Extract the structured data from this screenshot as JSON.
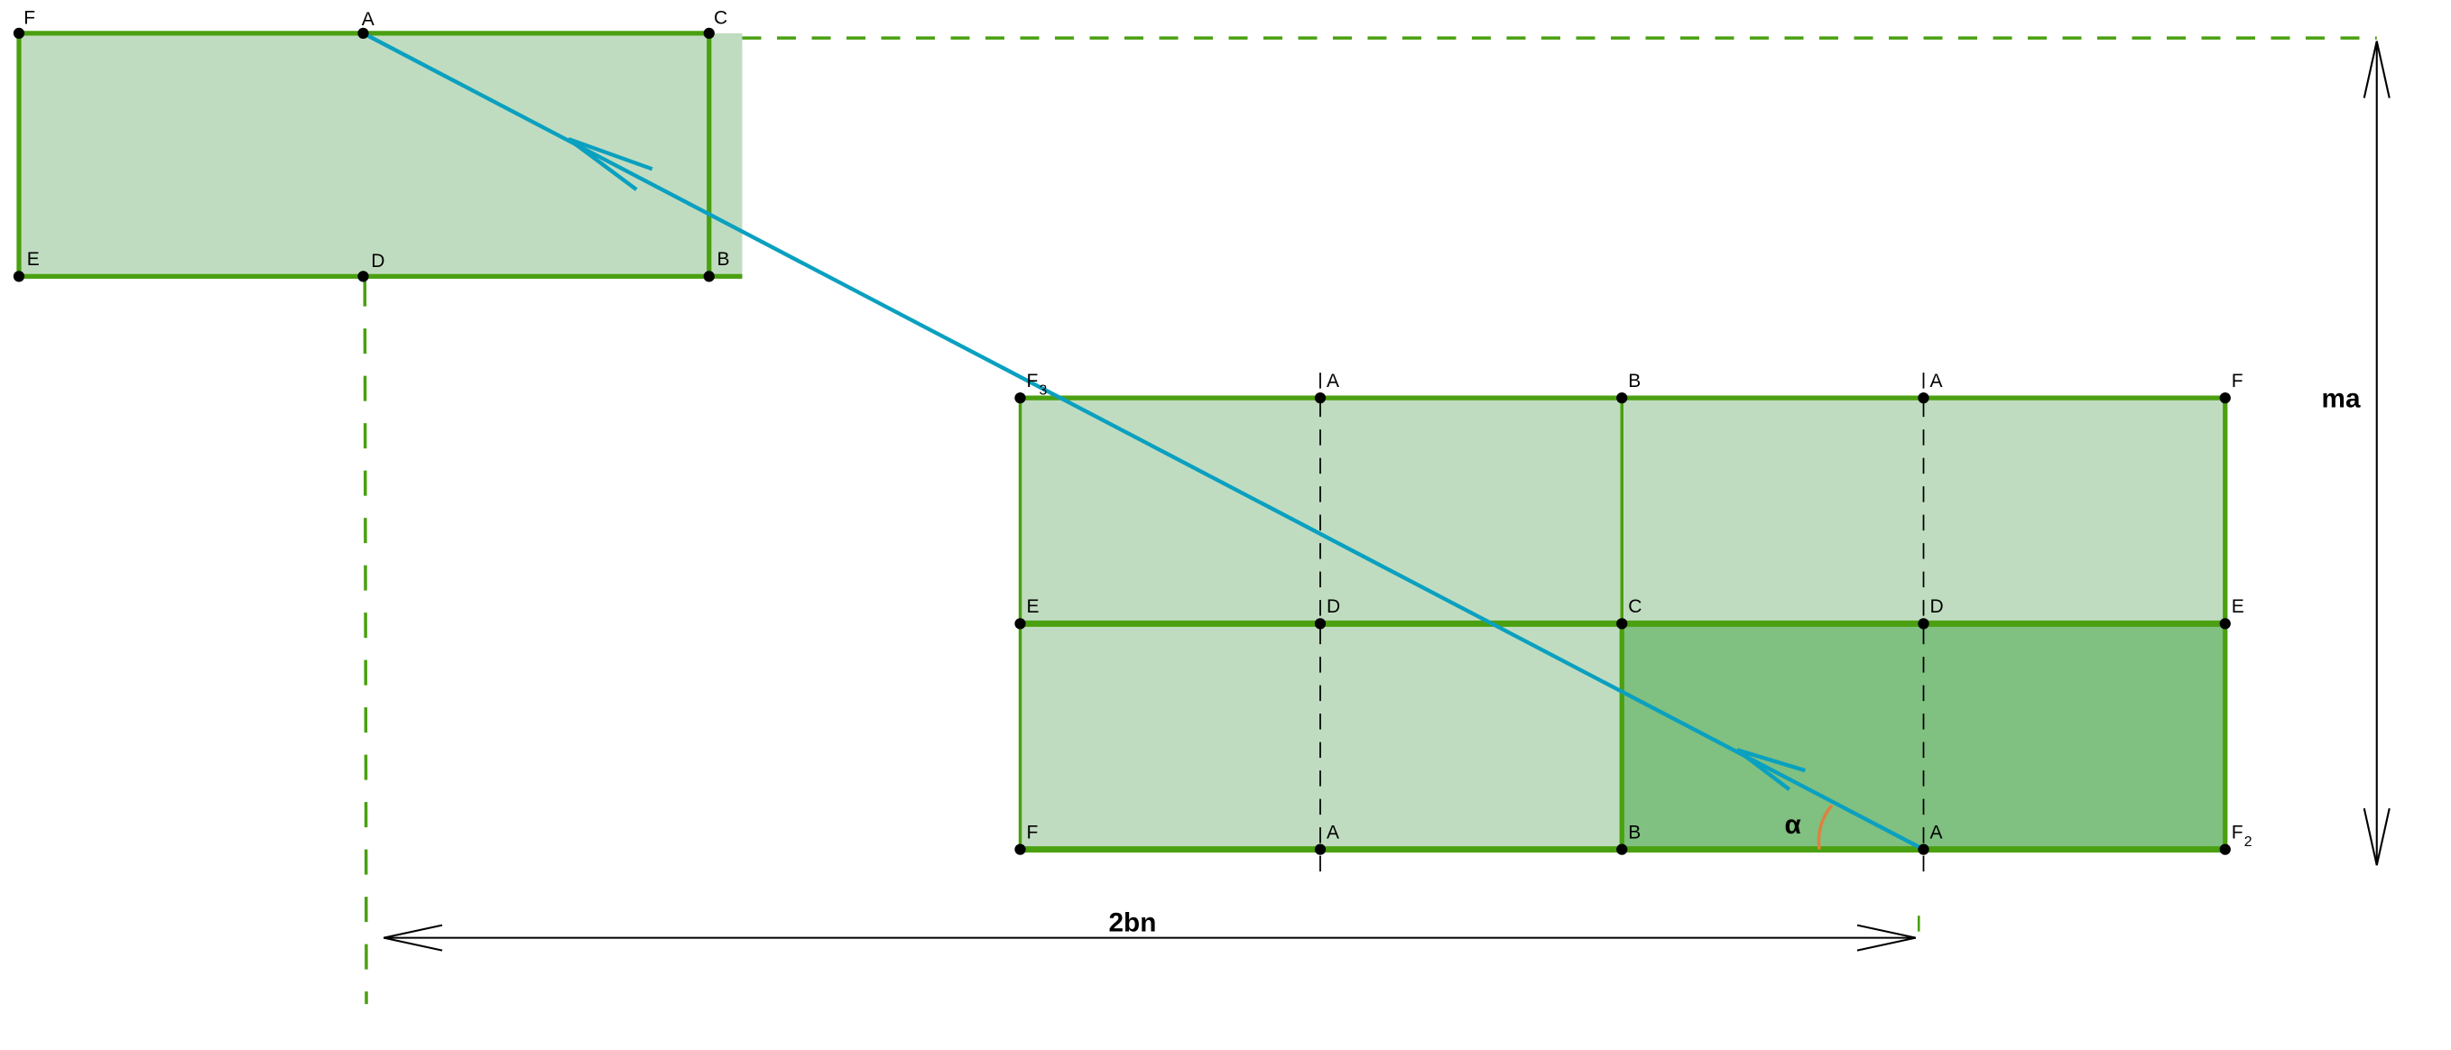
{
  "colors": {
    "light_fill": "#c0dcc0",
    "dark_fill": "#80c080",
    "edge": "#4aa010",
    "ray": "#0aa0c0",
    "arc": "#e08040"
  },
  "top_rect": {
    "labels": {
      "F": "F",
      "A": "A",
      "C": "C",
      "E": "E",
      "D": "D",
      "B": "B"
    }
  },
  "grid": {
    "top_row": [
      "F",
      "A",
      "B",
      "A",
      "F"
    ],
    "top_row_sub": [
      "3",
      "",
      "",
      "",
      ""
    ],
    "mid_row": [
      "E",
      "D",
      "C",
      "D",
      "E"
    ],
    "bottom_row": [
      "F",
      "A",
      "B",
      "A",
      "F"
    ],
    "bottom_row_sub": [
      "",
      "",
      "",
      "",
      "2"
    ]
  },
  "dimensions": {
    "vertical": "ma",
    "horizontal": "2bn",
    "angle": "α"
  }
}
